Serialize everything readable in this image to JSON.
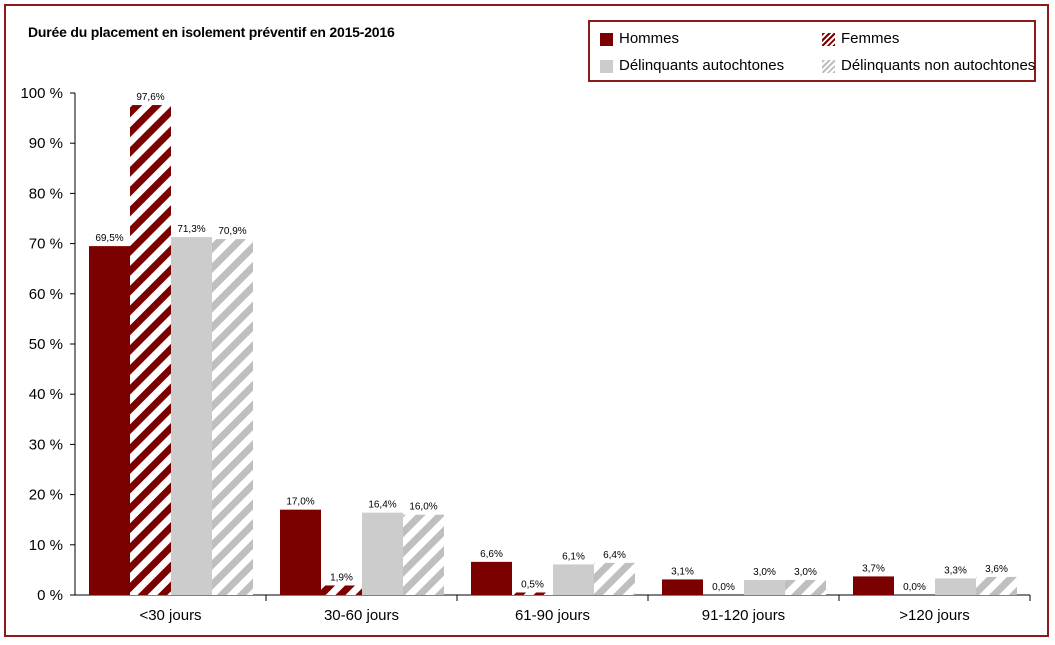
{
  "chart_data": {
    "type": "bar",
    "title": "Durée du placement en isolement préventif en 2015-2016",
    "xlabel": "",
    "ylabel": "",
    "ylim": [
      0,
      100
    ],
    "y_ticks": [
      "0 %",
      "10 %",
      "20 %",
      "30 %",
      "40 %",
      "50 %",
      "60 %",
      "70 %",
      "80 %",
      "90 %",
      "100 %"
    ],
    "categories": [
      "<30 jours",
      "30-60 jours",
      "61-90 jours",
      "91-120 jours",
      ">120 jours"
    ],
    "legend_position": "top-right",
    "grid": false,
    "series": [
      {
        "name": "Hommes",
        "color": "#7b0000",
        "pattern": "solid",
        "values": [
          69.5,
          17.0,
          6.6,
          3.1,
          3.7
        ],
        "labels": [
          "69,5%",
          "17,0%",
          "6,6%",
          "3,1%",
          "3,7%"
        ]
      },
      {
        "name": "Femmes",
        "color": "#7b0000",
        "pattern": "hatch",
        "values": [
          97.6,
          1.9,
          0.5,
          0.0,
          0.0
        ],
        "labels": [
          "97,6%",
          "1,9%",
          "0,5%",
          "0,0%",
          "0,0%"
        ]
      },
      {
        "name": "Délinquants autochtones",
        "color": "#cccccc",
        "pattern": "solid",
        "values": [
          71.3,
          16.4,
          6.1,
          3.0,
          3.3
        ],
        "labels": [
          "71,3%",
          "16,4%",
          "6,1%",
          "3,0%",
          "3,3%"
        ]
      },
      {
        "name": "Délinquants non autochtones",
        "color": "#bfbfbf",
        "pattern": "hatch",
        "values": [
          70.9,
          16.0,
          6.4,
          3.0,
          3.6
        ],
        "labels": [
          "70,9%",
          "16,0%",
          "6,4%",
          "3,0%",
          "3,6%"
        ]
      }
    ]
  }
}
